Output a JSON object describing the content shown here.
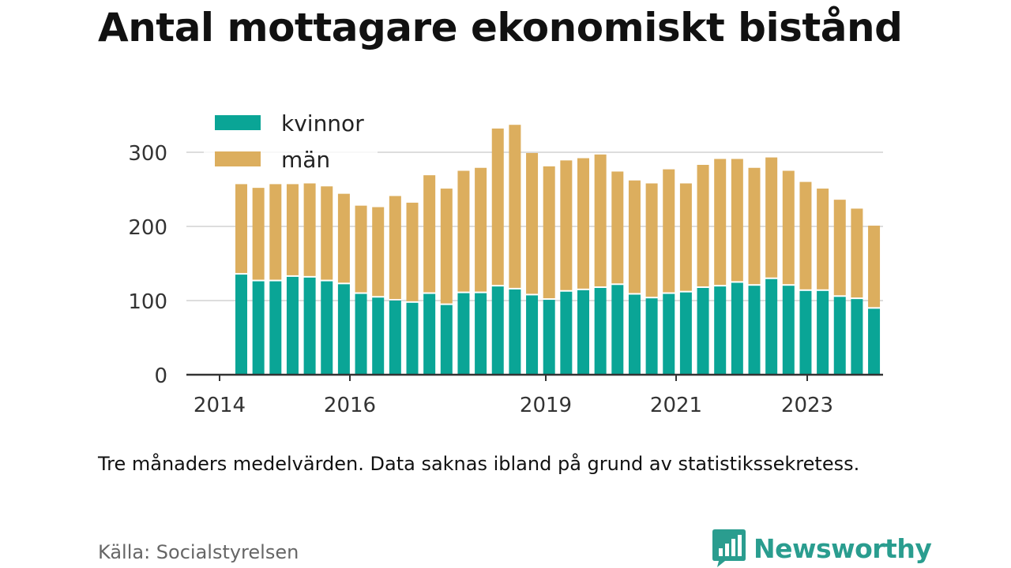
{
  "title": "Antal mottagare ekonomiskt bistånd",
  "note": "Tre månaders medelvärden. Data saknas ibland på grund av statistikssekretess.",
  "source": "Källa: Socialstyrelsen",
  "brand": {
    "name": "Newsworthy",
    "icon": "bar-chart-speech-icon",
    "color": "#2a9d8f"
  },
  "chart_data": {
    "type": "bar",
    "stacked": true,
    "x_tick_labels": [
      "2014",
      "2016",
      "2019",
      "2021",
      "2023"
    ],
    "y_ticks": [
      0,
      100,
      200,
      300
    ],
    "ylim": [
      0,
      340
    ],
    "grid": true,
    "legend_position": "top-left",
    "colors": {
      "kvinnor": "#0aa596",
      "man": "#dcae5e"
    },
    "series": [
      {
        "name": "kvinnor",
        "values": [
          135,
          126,
          126,
          132,
          131,
          126,
          122,
          109,
          104,
          100,
          97,
          109,
          94,
          110,
          110,
          119,
          115,
          107,
          101,
          112,
          114,
          117,
          121,
          108,
          103,
          109,
          111,
          117,
          119,
          124,
          120,
          129,
          120,
          113,
          113,
          105,
          102,
          89
        ]
      },
      {
        "name": "män",
        "values": [
          122,
          126,
          131,
          125,
          127,
          128,
          122,
          119,
          122,
          141,
          135,
          160,
          157,
          165,
          169,
          213,
          222,
          192,
          180,
          177,
          178,
          180,
          153,
          154,
          155,
          168,
          147,
          166,
          172,
          167,
          159,
          164,
          155,
          147,
          138,
          131,
          122,
          112
        ]
      }
    ]
  }
}
